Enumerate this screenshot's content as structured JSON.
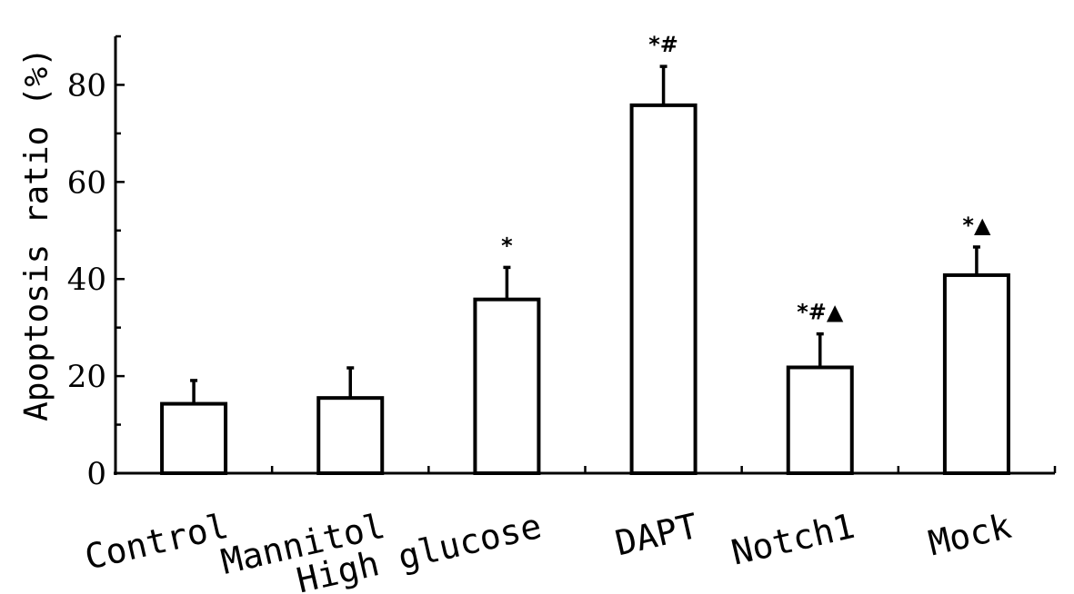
{
  "chart_data": {
    "type": "bar",
    "title": "",
    "xlabel": "",
    "ylabel": "Apoptosis ratio (%)",
    "ylim": [
      0,
      90
    ],
    "yticks": [
      0,
      20,
      40,
      60,
      80
    ],
    "grid": false,
    "categories": [
      "Control",
      "Mannitol",
      "High glucose",
      "DAPT",
      "Notch1",
      "Mock"
    ],
    "values": [
      14.3,
      15.5,
      35.8,
      75.8,
      21.8,
      40.8
    ],
    "error": [
      4.8,
      6.2,
      6.6,
      8.0,
      6.9,
      5.8
    ],
    "annotations": [
      "",
      "",
      "*",
      "*#",
      "*#▲",
      "*▲"
    ]
  }
}
